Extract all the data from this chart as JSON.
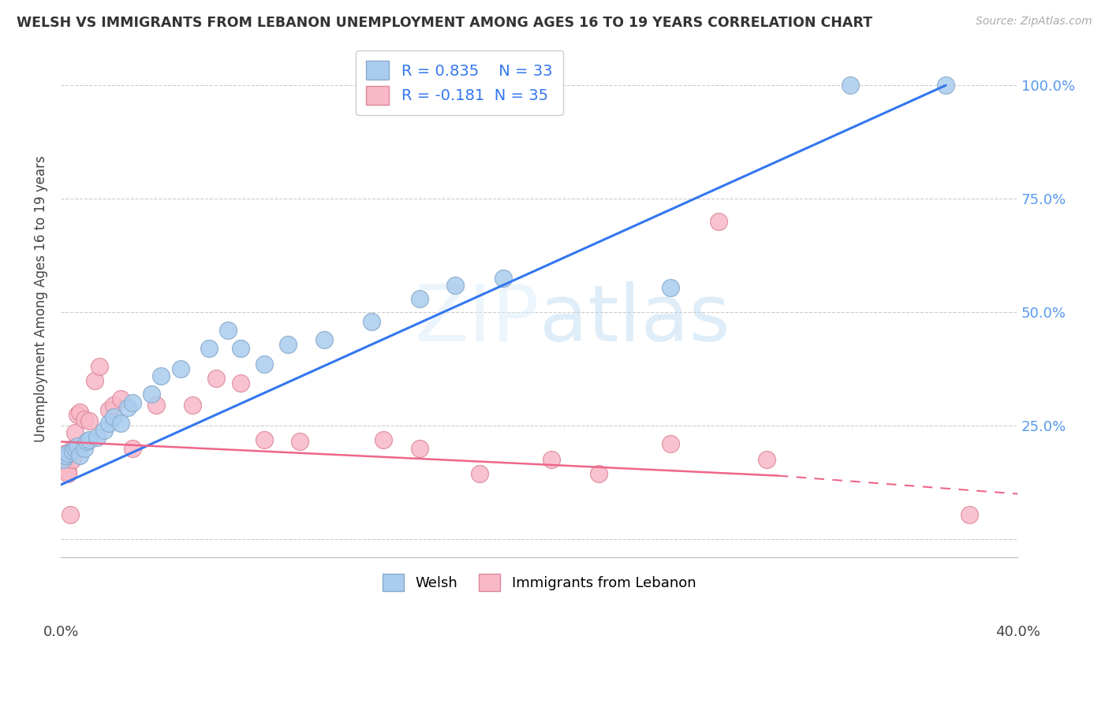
{
  "title": "WELSH VS IMMIGRANTS FROM LEBANON UNEMPLOYMENT AMONG AGES 16 TO 19 YEARS CORRELATION CHART",
  "source": "Source: ZipAtlas.com",
  "ylabel": "Unemployment Among Ages 16 to 19 years",
  "background_color": "#ffffff",
  "grid_color": "#cccccc",
  "welsh_color": "#aaccee",
  "welsh_edge_color": "#88aacc",
  "lebanon_color": "#f8b8c8",
  "lebanon_edge_color": "#dd8899",
  "welsh_line_color": "#3377ee",
  "lebanon_line_color": "#ee6688",
  "R_welsh": 0.835,
  "N_welsh": 33,
  "R_lebanon": -0.181,
  "N_lebanon": 35,
  "xlim": [
    0.0,
    0.4
  ],
  "ylim": [
    -0.04,
    1.1
  ],
  "welsh_scatter_x": [
    0.001,
    0.002,
    0.003,
    0.005,
    0.006,
    0.007,
    0.008,
    0.01,
    0.011,
    0.012,
    0.015,
    0.018,
    0.02,
    0.022,
    0.025,
    0.028,
    0.03,
    0.038,
    0.042,
    0.05,
    0.062,
    0.07,
    0.075,
    0.085,
    0.095,
    0.11,
    0.13,
    0.15,
    0.165,
    0.185,
    0.255,
    0.33,
    0.37
  ],
  "welsh_scatter_y": [
    0.175,
    0.185,
    0.19,
    0.195,
    0.2,
    0.205,
    0.185,
    0.2,
    0.215,
    0.22,
    0.225,
    0.24,
    0.255,
    0.27,
    0.255,
    0.29,
    0.3,
    0.32,
    0.36,
    0.375,
    0.42,
    0.46,
    0.42,
    0.385,
    0.43,
    0.44,
    0.48,
    0.53,
    0.56,
    0.575,
    0.555,
    1.0,
    1.0
  ],
  "lebanon_scatter_x": [
    0.001,
    0.001,
    0.002,
    0.002,
    0.003,
    0.003,
    0.004,
    0.005,
    0.005,
    0.006,
    0.007,
    0.008,
    0.01,
    0.012,
    0.014,
    0.016,
    0.02,
    0.022,
    0.025,
    0.03,
    0.04,
    0.055,
    0.065,
    0.075,
    0.085,
    0.1,
    0.135,
    0.15,
    0.175,
    0.205,
    0.225,
    0.255,
    0.275,
    0.295,
    0.38
  ],
  "lebanon_scatter_y": [
    0.175,
    0.165,
    0.18,
    0.19,
    0.15,
    0.145,
    0.055,
    0.175,
    0.2,
    0.235,
    0.275,
    0.28,
    0.265,
    0.26,
    0.35,
    0.38,
    0.285,
    0.295,
    0.31,
    0.2,
    0.295,
    0.295,
    0.355,
    0.345,
    0.22,
    0.215,
    0.22,
    0.2,
    0.145,
    0.175,
    0.145,
    0.21,
    0.7,
    0.175,
    0.055
  ],
  "welsh_line_x": [
    0.0,
    0.37
  ],
  "welsh_line_y": [
    0.12,
    1.0
  ],
  "lebanon_line_x": [
    0.0,
    0.38
  ],
  "lebanon_line_y": [
    0.215,
    0.12
  ]
}
